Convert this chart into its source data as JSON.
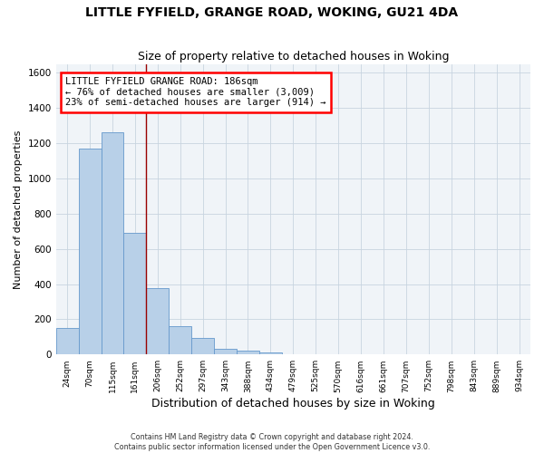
{
  "title": "LITTLE FYFIELD, GRANGE ROAD, WOKING, GU21 4DA",
  "subtitle": "Size of property relative to detached houses in Woking",
  "xlabel": "Distribution of detached houses by size in Woking",
  "ylabel": "Number of detached properties",
  "bar_labels": [
    "24sqm",
    "70sqm",
    "115sqm",
    "161sqm",
    "206sqm",
    "252sqm",
    "297sqm",
    "343sqm",
    "388sqm",
    "434sqm",
    "479sqm",
    "525sqm",
    "570sqm",
    "616sqm",
    "661sqm",
    "707sqm",
    "752sqm",
    "798sqm",
    "843sqm",
    "889sqm",
    "934sqm"
  ],
  "bar_values": [
    150,
    1170,
    1260,
    690,
    375,
    160,
    92,
    35,
    20,
    10,
    0,
    0,
    0,
    0,
    0,
    0,
    0,
    0,
    0,
    0,
    0
  ],
  "bar_color": "#b8d0e8",
  "bar_edge_color": "#6699cc",
  "ylim": [
    0,
    1650
  ],
  "yticks": [
    0,
    200,
    400,
    600,
    800,
    1000,
    1200,
    1400,
    1600
  ],
  "annotation_box_text": "LITTLE FYFIELD GRANGE ROAD: 186sqm\n← 76% of detached houses are smaller (3,009)\n23% of semi-detached houses are larger (914) →",
  "vline_x": 3.5,
  "vline_color": "#990000",
  "footer_line1": "Contains HM Land Registry data © Crown copyright and database right 2024.",
  "footer_line2": "Contains public sector information licensed under the Open Government Licence v3.0.",
  "bg_color": "#ffffff",
  "plot_bg_color": "#f0f4f8",
  "grid_color": "#c8d4e0",
  "title_fontsize": 10,
  "subtitle_fontsize": 9,
  "xlabel_fontsize": 9,
  "ylabel_fontsize": 8
}
